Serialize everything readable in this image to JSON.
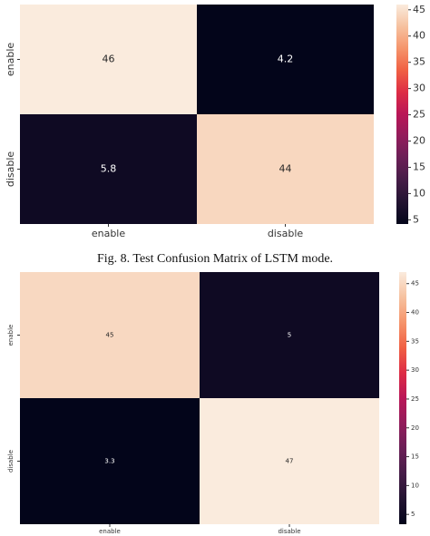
{
  "chart_data": [
    {
      "type": "heatmap",
      "x_categories": [
        "enable",
        "disable"
      ],
      "y_categories": [
        "enable",
        "disable"
      ],
      "values": [
        [
          46,
          4.2
        ],
        [
          5.8,
          44
        ]
      ],
      "colormap": "rocket",
      "clim": [
        4.2,
        46
      ],
      "cticks": [
        5,
        10,
        15,
        20,
        25,
        30,
        35,
        40,
        45
      ]
    },
    {
      "type": "heatmap",
      "x_categories": [
        "enable",
        "disable"
      ],
      "y_categories": [
        "enable",
        "disable"
      ],
      "values": [
        [
          45,
          5
        ],
        [
          3.3,
          47
        ]
      ],
      "colormap": "rocket",
      "clim": [
        3.3,
        47
      ],
      "cticks": [
        5,
        10,
        15,
        20,
        25,
        30,
        35,
        40,
        45
      ]
    }
  ],
  "caption": "Fig. 8.   Test Confusion Matrix of LSTM mode."
}
